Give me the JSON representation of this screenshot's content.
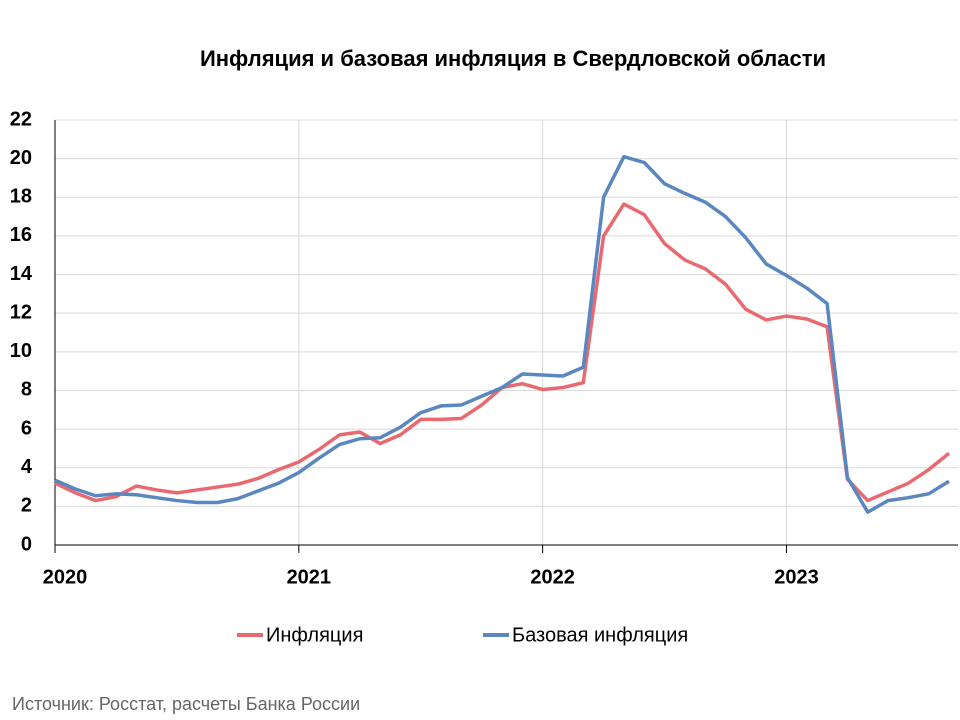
{
  "chart_data": {
    "type": "line",
    "title": "Инфляция и базовая инфляция в Свердловской области",
    "source": "Источник: Росстат, расчеты Банка России",
    "categories": [
      "2020",
      null,
      null,
      null,
      null,
      null,
      null,
      null,
      null,
      null,
      null,
      null,
      "2021",
      null,
      null,
      null,
      null,
      null,
      null,
      null,
      null,
      null,
      null,
      null,
      "2022",
      null,
      null,
      null,
      null,
      null,
      null,
      null,
      null,
      null,
      null,
      null,
      "2023",
      null,
      null,
      null,
      null,
      null,
      null,
      null,
      null
    ],
    "series": [
      {
        "name": "Инфляция",
        "color": "#e8696f",
        "values": [
          3.2,
          2.7,
          2.3,
          2.5,
          3.05,
          2.85,
          2.7,
          2.85,
          3.0,
          3.15,
          3.45,
          3.9,
          4.3,
          4.95,
          5.7,
          5.85,
          5.25,
          5.7,
          6.5,
          6.5,
          6.55,
          7.25,
          8.15,
          8.35,
          8.05,
          8.15,
          8.4,
          16.0,
          17.65,
          17.1,
          15.6,
          14.75,
          14.3,
          13.5,
          12.2,
          11.65,
          11.85,
          11.7,
          11.3,
          3.4,
          2.3,
          2.75,
          3.2,
          3.9,
          4.75
        ]
      },
      {
        "name": "Базовая инфляция",
        "color": "#5b87c0",
        "values": [
          3.35,
          2.9,
          2.55,
          2.65,
          2.6,
          2.45,
          2.3,
          2.2,
          2.2,
          2.4,
          2.8,
          3.2,
          3.75,
          4.5,
          5.2,
          5.5,
          5.55,
          6.1,
          6.85,
          7.2,
          7.25,
          7.7,
          8.15,
          8.85,
          8.8,
          8.75,
          9.2,
          18.0,
          20.1,
          19.8,
          18.7,
          18.2,
          17.75,
          17.0,
          15.9,
          14.55,
          13.95,
          13.3,
          12.5,
          3.5,
          1.7,
          2.3,
          2.45,
          2.65,
          3.3
        ]
      }
    ],
    "ylim": [
      0,
      22
    ],
    "yticks": [
      0,
      2,
      4,
      6,
      8,
      10,
      12,
      14,
      16,
      18,
      20,
      22
    ],
    "grid": true,
    "legend": "bottom"
  }
}
